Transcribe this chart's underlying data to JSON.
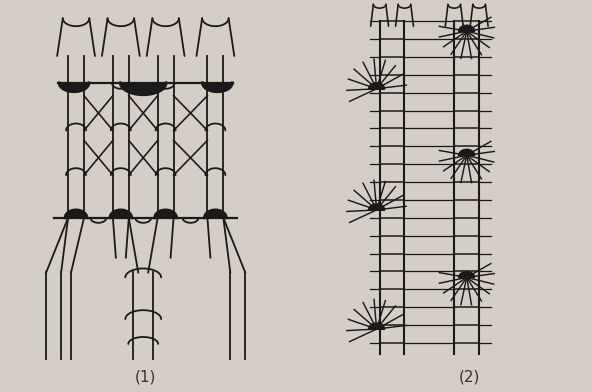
{
  "label1": "(1)",
  "label2": "(2)",
  "bg_color": "#d4cec6",
  "line_color": "#1a1a1a",
  "fig_width": 5.92,
  "fig_height": 3.92,
  "dpi": 100
}
